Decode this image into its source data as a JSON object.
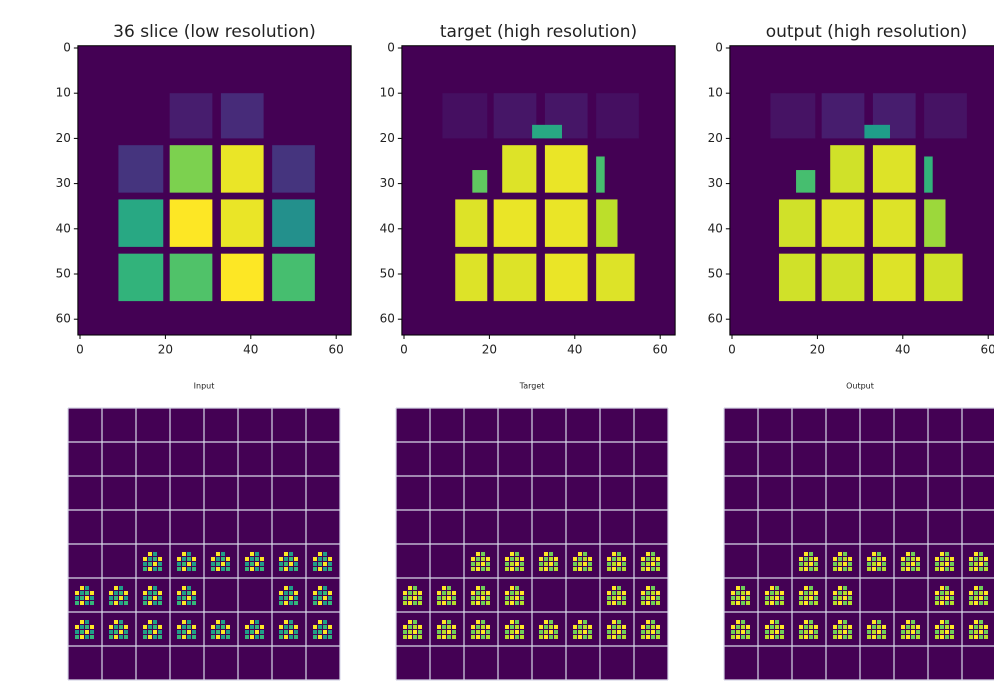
{
  "chart_data": [
    {
      "type": "heatmap",
      "title": "36 slice (low resolution)",
      "colormap": "viridis",
      "xlim": [
        -0.5,
        63.5
      ],
      "ylim": [
        63.5,
        -0.5
      ],
      "xticks": [
        0,
        20,
        40,
        60
      ],
      "yticks": [
        0,
        10,
        20,
        30,
        40,
        50,
        60
      ],
      "cells": [
        {
          "x": [
            21,
            31
          ],
          "y": [
            10,
            20
          ],
          "value": 0.08
        },
        {
          "x": [
            33,
            43
          ],
          "y": [
            10,
            20
          ],
          "value": 0.12
        },
        {
          "x": [
            9,
            19.5
          ],
          "y": [
            21.5,
            32
          ],
          "value": 0.15
        },
        {
          "x": [
            21,
            31
          ],
          "y": [
            21.5,
            32
          ],
          "value": 0.8
        },
        {
          "x": [
            33,
            43
          ],
          "y": [
            21.5,
            32
          ],
          "value": 0.97
        },
        {
          "x": [
            45,
            55
          ],
          "y": [
            21.5,
            32
          ],
          "value": 0.15
        },
        {
          "x": [
            9,
            19.5
          ],
          "y": [
            33.5,
            44
          ],
          "value": 0.6
        },
        {
          "x": [
            21,
            31
          ],
          "y": [
            33.5,
            44
          ],
          "value": 1.0
        },
        {
          "x": [
            33,
            43
          ],
          "y": [
            33.5,
            44
          ],
          "value": 0.97
        },
        {
          "x": [
            45,
            55
          ],
          "y": [
            33.5,
            44
          ],
          "value": 0.5
        },
        {
          "x": [
            9,
            19.5
          ],
          "y": [
            45.5,
            56
          ],
          "value": 0.65
        },
        {
          "x": [
            21,
            31
          ],
          "y": [
            45.5,
            56
          ],
          "value": 0.72
        },
        {
          "x": [
            33,
            43
          ],
          "y": [
            45.5,
            56
          ],
          "value": 1.0
        },
        {
          "x": [
            45,
            55
          ],
          "y": [
            45.5,
            56
          ],
          "value": 0.7
        }
      ]
    },
    {
      "type": "heatmap",
      "title": "target (high resolution)",
      "colormap": "viridis",
      "xlim": [
        -0.5,
        63.5
      ],
      "ylim": [
        63.5,
        -0.5
      ],
      "xticks": [
        0,
        20,
        40,
        60
      ],
      "yticks": [
        0,
        10,
        20,
        30,
        40,
        50,
        60
      ],
      "cells": [
        {
          "x": [
            9,
            19.5
          ],
          "y": [
            10,
            20
          ],
          "value": 0.04
        },
        {
          "x": [
            21,
            31
          ],
          "y": [
            10,
            20
          ],
          "value": 0.06
        },
        {
          "x": [
            33,
            43
          ],
          "y": [
            10,
            20
          ],
          "value": 0.06
        },
        {
          "x": [
            45,
            55
          ],
          "y": [
            10,
            20
          ],
          "value": 0.04
        },
        {
          "x": [
            30,
            37
          ],
          "y": [
            17,
            20
          ],
          "value": 0.6
        },
        {
          "x": [
            16,
            19.5
          ],
          "y": [
            27,
            32
          ],
          "value": 0.75
        },
        {
          "x": [
            23,
            31
          ],
          "y": [
            21.5,
            32
          ],
          "value": 0.95
        },
        {
          "x": [
            33,
            43
          ],
          "y": [
            21.5,
            32
          ],
          "value": 0.97
        },
        {
          "x": [
            45,
            47
          ],
          "y": [
            24,
            32
          ],
          "value": 0.7
        },
        {
          "x": [
            12,
            19.5
          ],
          "y": [
            33.5,
            44
          ],
          "value": 0.95
        },
        {
          "x": [
            21,
            31
          ],
          "y": [
            33.5,
            44
          ],
          "value": 0.97
        },
        {
          "x": [
            33,
            43
          ],
          "y": [
            33.5,
            44
          ],
          "value": 0.97
        },
        {
          "x": [
            45,
            50
          ],
          "y": [
            33.5,
            44
          ],
          "value": 0.9
        },
        {
          "x": [
            12,
            19.5
          ],
          "y": [
            45.5,
            56
          ],
          "value": 0.95
        },
        {
          "x": [
            21,
            31
          ],
          "y": [
            45.5,
            56
          ],
          "value": 0.95
        },
        {
          "x": [
            33,
            43
          ],
          "y": [
            45.5,
            56
          ],
          "value": 0.97
        },
        {
          "x": [
            45,
            54
          ],
          "y": [
            45.5,
            56
          ],
          "value": 0.95
        }
      ]
    },
    {
      "type": "heatmap",
      "title": "output (high resolution)",
      "colormap": "viridis",
      "xlim": [
        -0.5,
        63.5
      ],
      "ylim": [
        63.5,
        -0.5
      ],
      "xticks": [
        0,
        20,
        40,
        60
      ],
      "yticks": [
        0,
        10,
        20,
        30,
        40,
        50,
        60
      ],
      "cells": [
        {
          "x": [
            9,
            19.5
          ],
          "y": [
            10,
            20
          ],
          "value": 0.05
        },
        {
          "x": [
            21,
            31
          ],
          "y": [
            10,
            20
          ],
          "value": 0.08
        },
        {
          "x": [
            33,
            43
          ],
          "y": [
            10,
            20
          ],
          "value": 0.08
        },
        {
          "x": [
            45,
            55
          ],
          "y": [
            10,
            20
          ],
          "value": 0.05
        },
        {
          "x": [
            31,
            37
          ],
          "y": [
            17,
            20
          ],
          "value": 0.55
        },
        {
          "x": [
            15,
            19.5
          ],
          "y": [
            27,
            32
          ],
          "value": 0.7
        },
        {
          "x": [
            23,
            31
          ],
          "y": [
            21.5,
            32
          ],
          "value": 0.93
        },
        {
          "x": [
            33,
            43
          ],
          "y": [
            21.5,
            32
          ],
          "value": 0.95
        },
        {
          "x": [
            45,
            47
          ],
          "y": [
            24,
            32
          ],
          "value": 0.65
        },
        {
          "x": [
            11,
            19.5
          ],
          "y": [
            33.5,
            44
          ],
          "value": 0.93
        },
        {
          "x": [
            21,
            31
          ],
          "y": [
            33.5,
            44
          ],
          "value": 0.95
        },
        {
          "x": [
            33,
            43
          ],
          "y": [
            33.5,
            44
          ],
          "value": 0.95
        },
        {
          "x": [
            45,
            50
          ],
          "y": [
            33.5,
            44
          ],
          "value": 0.85
        },
        {
          "x": [
            11,
            19.5
          ],
          "y": [
            45.5,
            56
          ],
          "value": 0.93
        },
        {
          "x": [
            21,
            31
          ],
          "y": [
            45.5,
            56
          ],
          "value": 0.93
        },
        {
          "x": [
            33,
            43
          ],
          "y": [
            45.5,
            56
          ],
          "value": 0.95
        },
        {
          "x": [
            45,
            54
          ],
          "y": [
            45.5,
            56
          ],
          "value": 0.93
        }
      ]
    },
    {
      "type": "tiles",
      "title": "Input",
      "tiles": [
        [
          0,
          0,
          0,
          0,
          0,
          0,
          0,
          0
        ],
        [
          0,
          0,
          0,
          0,
          0,
          0,
          0,
          0
        ],
        [
          0,
          0,
          0,
          0,
          0,
          0,
          0,
          0
        ],
        [
          0,
          0,
          0,
          0,
          0,
          0,
          0,
          0
        ],
        [
          0,
          0,
          1,
          1,
          1,
          1,
          1,
          1
        ],
        [
          1,
          1,
          1,
          1,
          0,
          0,
          1,
          1
        ],
        [
          1,
          1,
          1,
          1,
          1,
          1,
          1,
          1
        ],
        [
          0,
          0,
          0,
          0,
          0,
          0,
          0,
          0
        ]
      ]
    },
    {
      "type": "tiles",
      "title": "Target",
      "tiles": [
        [
          0,
          0,
          0,
          0,
          0,
          0,
          0,
          0
        ],
        [
          0,
          0,
          0,
          0,
          0,
          0,
          0,
          0
        ],
        [
          0,
          0,
          0,
          0,
          0,
          0,
          0,
          0
        ],
        [
          0,
          0,
          0,
          0,
          0,
          0,
          0,
          0
        ],
        [
          0,
          0,
          1,
          1,
          1,
          1,
          1,
          1
        ],
        [
          1,
          1,
          1,
          1,
          0,
          0,
          1,
          1
        ],
        [
          1,
          1,
          1,
          1,
          1,
          1,
          1,
          1
        ],
        [
          0,
          0,
          0,
          0,
          0,
          0,
          0,
          0
        ]
      ]
    },
    {
      "type": "tiles",
      "title": "Output",
      "tiles": [
        [
          0,
          0,
          0,
          0,
          0,
          0,
          0,
          0
        ],
        [
          0,
          0,
          0,
          0,
          0,
          0,
          0,
          0
        ],
        [
          0,
          0,
          0,
          0,
          0,
          0,
          0,
          0
        ],
        [
          0,
          0,
          0,
          0,
          0,
          0,
          0,
          0
        ],
        [
          0,
          0,
          1,
          1,
          1,
          1,
          1,
          1
        ],
        [
          1,
          1,
          1,
          1,
          0,
          0,
          1,
          1
        ],
        [
          1,
          1,
          1,
          1,
          1,
          1,
          1,
          1
        ],
        [
          0,
          0,
          0,
          0,
          0,
          0,
          0,
          0
        ]
      ]
    }
  ]
}
